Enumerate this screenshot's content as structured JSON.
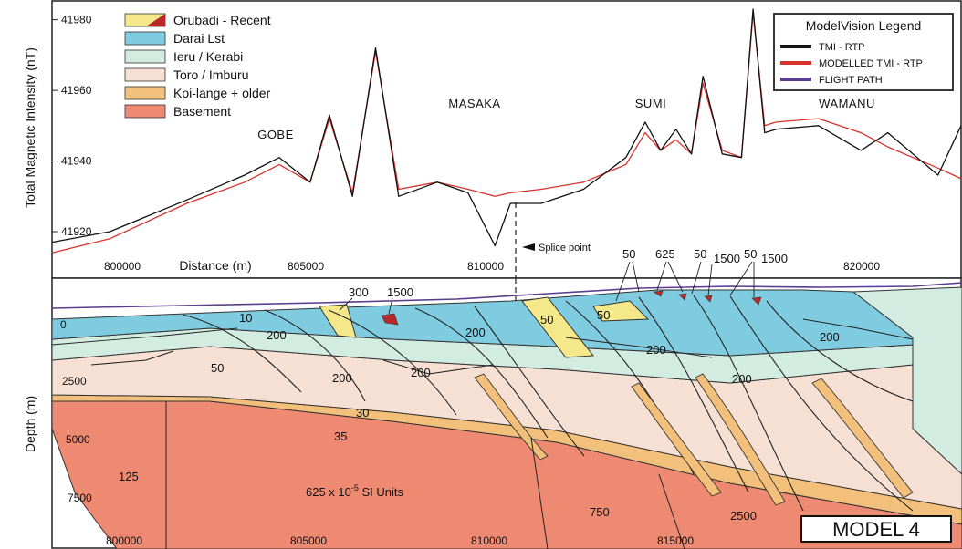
{
  "legend_units": {
    "items": [
      {
        "label": "Orubadi - Recent",
        "color": "#f4e88a"
      },
      {
        "label": "Darai Lst",
        "color": "#7fcbe0"
      },
      {
        "label": "Ieru / Kerabi",
        "color": "#d3ece1"
      },
      {
        "label": "Toro / Imburu",
        "color": "#f6e0d4"
      },
      {
        "label": "Koi-lange + older",
        "color": "#f2c07a"
      },
      {
        "label": "Basement",
        "color": "#ef8a72"
      }
    ]
  },
  "legend_model": {
    "title": "ModelVision Legend",
    "items": [
      {
        "label": "TMI - RTP",
        "color": "#111111"
      },
      {
        "label": "MODELLED TMI - RTP",
        "color": "#d8322c"
      },
      {
        "label": "FLIGHT PATH",
        "color": "#5a3d8f"
      }
    ]
  },
  "profile": {
    "ylabel": "Total Magnetic Intensity (nT)",
    "yticks": [
      "41980",
      "41960",
      "41940",
      "41920"
    ],
    "xlabel": "Distance (m)",
    "xticks": [
      "800000",
      "805000",
      "810000",
      "820000"
    ],
    "places": [
      "GOBE",
      "MASAKA",
      "SUMI",
      "WAMANU"
    ],
    "splice": "Splice point"
  },
  "section": {
    "ylabel": "Depth (m)",
    "yticks": [
      "0",
      "2500",
      "5000",
      "7500"
    ],
    "xticks": [
      "800000",
      "805000",
      "810000",
      "815000"
    ],
    "susceptibilities": [
      "300",
      "1500",
      "10",
      "200",
      "50",
      "200",
      "200",
      "200",
      "30",
      "35",
      "125",
      "50",
      "50",
      "625",
      "50",
      "1500",
      "50",
      "1500",
      "50",
      "200",
      "200",
      "750",
      "2500"
    ],
    "units_label_prefix": "625 x 10",
    "units_label_exp": "-5",
    "units_label_suffix": " SI Units",
    "model_label": "MODEL 4"
  },
  "chart_data": {
    "type": "line",
    "title": "",
    "xlabel": "Distance (m)",
    "ylabel": "Total Magnetic Intensity (nT)",
    "ylim": [
      41912,
      41983
    ],
    "x": [
      798500,
      800000,
      802000,
      803500,
      804400,
      805200,
      805700,
      806300,
      806900,
      807500,
      808500,
      809300,
      810000,
      810400,
      811200,
      812300,
      813400,
      813900,
      814300,
      814700,
      815100,
      815400,
      815900,
      816400,
      816700,
      817000,
      817300,
      818400,
      819500,
      820200,
      821500,
      822100
    ],
    "series": [
      {
        "name": "TMI - RTP",
        "values": [
          41917,
          41920,
          41929,
          41936,
          41941,
          41934,
          41953,
          41930,
          41972,
          41930,
          41934,
          41931,
          41916,
          41928,
          41928,
          41932,
          41941,
          41951,
          41943,
          41949,
          41942,
          41964,
          41942,
          41941,
          41983,
          41948,
          41949,
          41950,
          41943,
          41948,
          41936,
          41950
        ]
      },
      {
        "name": "MODELLED TMI - RTP",
        "values": [
          41914,
          41918,
          41928,
          41934,
          41939,
          41934,
          41952,
          41931,
          41971,
          41932,
          41934,
          41932,
          41930,
          41931,
          41932,
          41934,
          41939,
          41948,
          41943,
          41946,
          41942,
          41962,
          41943,
          41941,
          41982,
          41950,
          41951,
          41952,
          41948,
          41944,
          41938,
          41935
        ]
      }
    ]
  }
}
